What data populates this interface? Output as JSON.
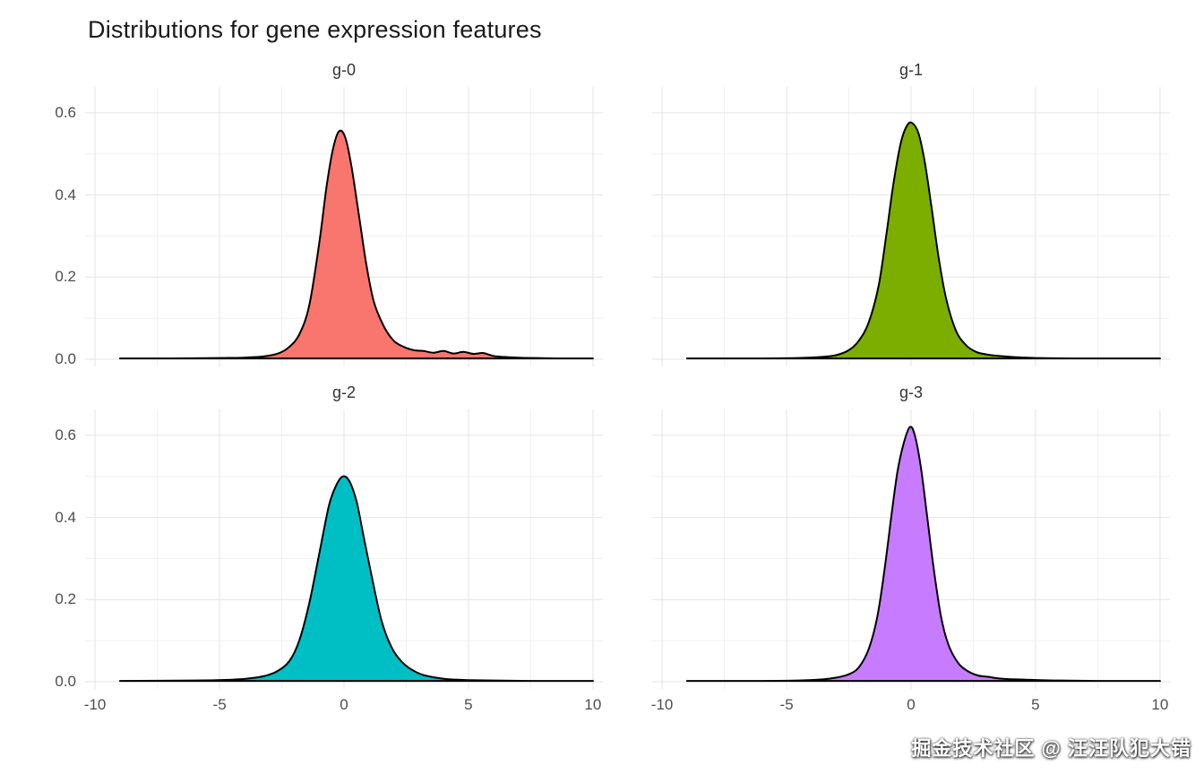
{
  "title": "Distributions for gene expression features",
  "watermark": "掘金技术社区 @ 汪汪队犯大错",
  "chart_data": {
    "type": "area",
    "subtype": "density",
    "title": "Distributions for gene expression features",
    "xlabel": "",
    "ylabel": "",
    "xlim": [
      -10.4,
      10.4
    ],
    "ylim": [
      0,
      0.65
    ],
    "grid": true,
    "legend": "none",
    "x_ticks": [
      -10,
      -5,
      0,
      5,
      10
    ],
    "x_tick_labels": [
      "-10",
      "-5",
      "0",
      "5",
      "10"
    ],
    "x_minor_ticks": [
      -7.5,
      -2.5,
      2.5,
      7.5
    ],
    "y_ticks": [
      0,
      0.2,
      0.4,
      0.6
    ],
    "y_tick_labels": [
      "0.0",
      "0.2",
      "0.4",
      "0.6"
    ],
    "y_minor_ticks": [
      0.1,
      0.3,
      0.5
    ],
    "stroke_color": "#000000",
    "grid_major_color": "#e4e4e4",
    "grid_minor_color": "#f1f1f1",
    "tick_label_color": "#4d4d4d",
    "facets": [
      {
        "label": "g-0",
        "fill": "#F8766D",
        "peak": 0.555,
        "points": [
          [
            -9,
            0.002
          ],
          [
            -7,
            0.002
          ],
          [
            -5,
            0.003
          ],
          [
            -4,
            0.004
          ],
          [
            -3.2,
            0.007
          ],
          [
            -2.6,
            0.015
          ],
          [
            -2.2,
            0.03
          ],
          [
            -1.8,
            0.06
          ],
          [
            -1.4,
            0.13
          ],
          [
            -1.0,
            0.28
          ],
          [
            -0.7,
            0.42
          ],
          [
            -0.45,
            0.51
          ],
          [
            -0.2,
            0.555
          ],
          [
            0.05,
            0.54
          ],
          [
            0.3,
            0.47
          ],
          [
            0.6,
            0.35
          ],
          [
            0.9,
            0.23
          ],
          [
            1.2,
            0.14
          ],
          [
            1.6,
            0.08
          ],
          [
            2.0,
            0.045
          ],
          [
            2.4,
            0.03
          ],
          [
            2.8,
            0.022
          ],
          [
            3.2,
            0.02
          ],
          [
            3.6,
            0.016
          ],
          [
            4.0,
            0.02
          ],
          [
            4.4,
            0.014
          ],
          [
            4.8,
            0.018
          ],
          [
            5.2,
            0.013
          ],
          [
            5.6,
            0.015
          ],
          [
            6.0,
            0.008
          ],
          [
            6.6,
            0.005
          ],
          [
            7.5,
            0.003
          ],
          [
            8.5,
            0.002
          ],
          [
            10,
            0.002
          ]
        ]
      },
      {
        "label": "g-1",
        "fill": "#7CAE00",
        "peak": 0.575,
        "points": [
          [
            -9,
            0.002
          ],
          [
            -6,
            0.002
          ],
          [
            -4.5,
            0.003
          ],
          [
            -3.5,
            0.006
          ],
          [
            -3.0,
            0.01
          ],
          [
            -2.5,
            0.022
          ],
          [
            -2.1,
            0.045
          ],
          [
            -1.7,
            0.09
          ],
          [
            -1.3,
            0.18
          ],
          [
            -1.0,
            0.3
          ],
          [
            -0.7,
            0.43
          ],
          [
            -0.4,
            0.53
          ],
          [
            -0.15,
            0.57
          ],
          [
            0.05,
            0.575
          ],
          [
            0.3,
            0.55
          ],
          [
            0.55,
            0.48
          ],
          [
            0.8,
            0.38
          ],
          [
            1.1,
            0.25
          ],
          [
            1.4,
            0.15
          ],
          [
            1.8,
            0.07
          ],
          [
            2.2,
            0.035
          ],
          [
            2.6,
            0.018
          ],
          [
            3.0,
            0.012
          ],
          [
            3.5,
            0.008
          ],
          [
            4.2,
            0.005
          ],
          [
            5.0,
            0.003
          ],
          [
            6.5,
            0.002
          ],
          [
            8,
            0.002
          ],
          [
            10,
            0.002
          ]
        ]
      },
      {
        "label": "g-2",
        "fill": "#00BFC4",
        "peak": 0.5,
        "points": [
          [
            -9,
            0.002
          ],
          [
            -6,
            0.003
          ],
          [
            -4.5,
            0.005
          ],
          [
            -3.8,
            0.008
          ],
          [
            -3.2,
            0.014
          ],
          [
            -2.7,
            0.025
          ],
          [
            -2.2,
            0.05
          ],
          [
            -1.8,
            0.1
          ],
          [
            -1.4,
            0.19
          ],
          [
            -1.0,
            0.31
          ],
          [
            -0.6,
            0.43
          ],
          [
            -0.3,
            0.48
          ],
          [
            -0.05,
            0.5
          ],
          [
            0.2,
            0.49
          ],
          [
            0.5,
            0.44
          ],
          [
            0.8,
            0.35
          ],
          [
            1.1,
            0.26
          ],
          [
            1.5,
            0.15
          ],
          [
            1.9,
            0.085
          ],
          [
            2.3,
            0.05
          ],
          [
            2.7,
            0.03
          ],
          [
            3.1,
            0.018
          ],
          [
            3.6,
            0.011
          ],
          [
            4.2,
            0.006
          ],
          [
            5.0,
            0.004
          ],
          [
            6,
            0.003
          ],
          [
            7.5,
            0.002
          ],
          [
            10,
            0.002
          ]
        ]
      },
      {
        "label": "g-3",
        "fill": "#C77CFF",
        "peak": 0.62,
        "points": [
          [
            -9,
            0.002
          ],
          [
            -6,
            0.002
          ],
          [
            -4.5,
            0.003
          ],
          [
            -3.5,
            0.006
          ],
          [
            -3.0,
            0.01
          ],
          [
            -2.5,
            0.018
          ],
          [
            -2.1,
            0.035
          ],
          [
            -1.7,
            0.08
          ],
          [
            -1.35,
            0.16
          ],
          [
            -1.05,
            0.28
          ],
          [
            -0.8,
            0.4
          ],
          [
            -0.55,
            0.51
          ],
          [
            -0.3,
            0.58
          ],
          [
            -0.05,
            0.62
          ],
          [
            0.15,
            0.6
          ],
          [
            0.4,
            0.52
          ],
          [
            0.65,
            0.4
          ],
          [
            0.9,
            0.28
          ],
          [
            1.2,
            0.16
          ],
          [
            1.5,
            0.09
          ],
          [
            1.9,
            0.045
          ],
          [
            2.3,
            0.025
          ],
          [
            2.7,
            0.015
          ],
          [
            3.1,
            0.012
          ],
          [
            3.5,
            0.008
          ],
          [
            4.0,
            0.006
          ],
          [
            4.6,
            0.005
          ],
          [
            5.2,
            0.004
          ],
          [
            6,
            0.003
          ],
          [
            7.5,
            0.002
          ],
          [
            10,
            0.002
          ]
        ]
      }
    ]
  }
}
